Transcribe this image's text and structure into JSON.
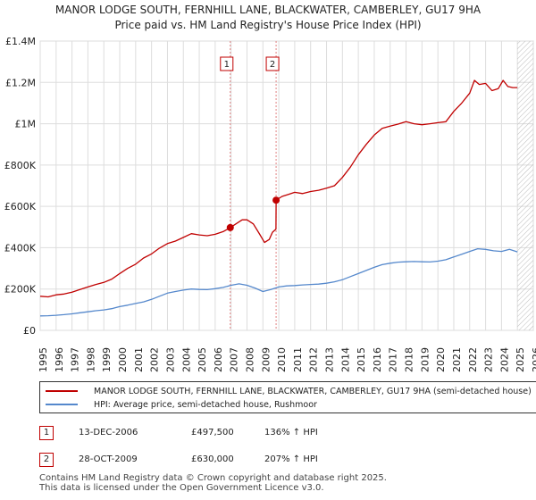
{
  "title_line1": "MANOR LODGE SOUTH, FERNHILL LANE, BLACKWATER, CAMBERLEY, GU17 9HA",
  "title_line2": "Price paid vs. HM Land Registry's House Price Index (HPI)",
  "chart_data": {
    "type": "line",
    "title": "MANOR LODGE SOUTH, FERNHILL LANE, BLACKWATER, CAMBERLEY, GU17 9HA",
    "subtitle": "Price paid vs. HM Land Registry's House Price Index (HPI)",
    "xlabel": "",
    "ylabel": "",
    "xlim": [
      1995,
      2026
    ],
    "ylim": [
      0,
      1400000
    ],
    "grid": true,
    "y_ticks": [
      {
        "value": 0,
        "label": "£0"
      },
      {
        "value": 200000,
        "label": "£200K"
      },
      {
        "value": 400000,
        "label": "£400K"
      },
      {
        "value": 600000,
        "label": "£600K"
      },
      {
        "value": 800000,
        "label": "£800K"
      },
      {
        "value": 1000000,
        "label": "£1M"
      },
      {
        "value": 1200000,
        "label": "£1.2M"
      },
      {
        "value": 1400000,
        "label": "£1.4M"
      }
    ],
    "x_ticks": [
      "1995",
      "1996",
      "1997",
      "1998",
      "1999",
      "2000",
      "2001",
      "2002",
      "2003",
      "2004",
      "2005",
      "2006",
      "2007",
      "2008",
      "2009",
      "2010",
      "2011",
      "2012",
      "2013",
      "2014",
      "2015",
      "2016",
      "2017",
      "2018",
      "2019",
      "2020",
      "2021",
      "2022",
      "2023",
      "2024",
      "2025",
      "2026"
    ],
    "series": [
      {
        "name": "MANOR LODGE SOUTH, FERNHILL LANE, BLACKWATER, CAMBERLEY, GU17 9HA (semi-detached house)",
        "color": "#c00000",
        "x": [
          1995.0,
          1995.5,
          1996.0,
          1996.5,
          1997.0,
          1997.5,
          1998.0,
          1998.5,
          1999.0,
          1999.5,
          2000.0,
          2000.5,
          2001.0,
          2001.5,
          2002.0,
          2002.5,
          2003.0,
          2003.5,
          2004.0,
          2004.5,
          2005.0,
          2005.5,
          2006.0,
          2006.5,
          2006.95,
          2007.3,
          2007.7,
          2008.0,
          2008.4,
          2008.8,
          2009.1,
          2009.4,
          2009.6,
          2009.82,
          2009.83,
          2010.2,
          2010.6,
          2011.0,
          2011.5,
          2012.0,
          2012.5,
          2013.0,
          2013.5,
          2014.0,
          2014.5,
          2015.0,
          2015.5,
          2016.0,
          2016.5,
          2017.0,
          2017.5,
          2018.0,
          2018.5,
          2019.0,
          2019.5,
          2020.0,
          2020.5,
          2021.0,
          2021.5,
          2022.0,
          2022.3,
          2022.6,
          2023.0,
          2023.4,
          2023.8,
          2024.1,
          2024.4,
          2024.7,
          2025.0
        ],
        "values": [
          165000,
          162000,
          172000,
          176000,
          185000,
          198000,
          210000,
          222000,
          232000,
          248000,
          275000,
          300000,
          320000,
          350000,
          370000,
          398000,
          420000,
          432000,
          450000,
          468000,
          462000,
          458000,
          465000,
          478000,
          497500,
          515000,
          535000,
          535000,
          515000,
          465000,
          425000,
          440000,
          475000,
          490000,
          630000,
          648000,
          658000,
          668000,
          662000,
          672000,
          678000,
          688000,
          700000,
          740000,
          790000,
          850000,
          900000,
          945000,
          978000,
          988000,
          998000,
          1010000,
          1000000,
          995000,
          1000000,
          1005000,
          1010000,
          1060000,
          1100000,
          1148000,
          1210000,
          1190000,
          1195000,
          1160000,
          1170000,
          1210000,
          1180000,
          1175000,
          1175000
        ]
      },
      {
        "name": "HPI: Average price, semi-detached house, Rushmoor",
        "color": "#5588cc",
        "x": [
          1995.0,
          1995.5,
          1996.0,
          1996.5,
          1997.0,
          1997.5,
          1998.0,
          1998.5,
          1999.0,
          1999.5,
          2000.0,
          2000.5,
          2001.0,
          2001.5,
          2002.0,
          2002.5,
          2003.0,
          2003.5,
          2004.0,
          2004.5,
          2005.0,
          2005.5,
          2006.0,
          2006.5,
          2007.0,
          2007.5,
          2008.0,
          2008.5,
          2009.0,
          2009.5,
          2010.0,
          2010.5,
          2011.0,
          2011.5,
          2012.0,
          2012.5,
          2013.0,
          2013.5,
          2014.0,
          2014.5,
          2015.0,
          2015.5,
          2016.0,
          2016.5,
          2017.0,
          2017.5,
          2018.0,
          2018.5,
          2019.0,
          2019.5,
          2020.0,
          2020.5,
          2021.0,
          2021.5,
          2022.0,
          2022.5,
          2023.0,
          2023.5,
          2024.0,
          2024.5,
          2025.0
        ],
        "values": [
          70000,
          71000,
          73000,
          76000,
          80000,
          85000,
          90000,
          95000,
          99000,
          105000,
          115000,
          122000,
          130000,
          138000,
          150000,
          165000,
          180000,
          188000,
          195000,
          200000,
          198000,
          197000,
          202000,
          208000,
          218000,
          225000,
          218000,
          205000,
          188000,
          198000,
          210000,
          215000,
          217000,
          220000,
          222000,
          224000,
          228000,
          235000,
          245000,
          260000,
          275000,
          290000,
          305000,
          318000,
          325000,
          330000,
          332000,
          333000,
          332000,
          331000,
          335000,
          342000,
          355000,
          368000,
          382000,
          395000,
          392000,
          385000,
          382000,
          392000,
          380000
        ]
      }
    ],
    "sales": [
      {
        "id": "1",
        "x": 2006.95,
        "value": 497500
      },
      {
        "id": "2",
        "x": 2009.83,
        "value": 630000
      }
    ],
    "forecast_start": 2025.0
  },
  "legend": {
    "property_label": "MANOR LODGE SOUTH, FERNHILL LANE, BLACKWATER, CAMBERLEY, GU17 9HA (semi-detached house)",
    "hpi_label": "HPI: Average price, semi-detached house, Rushmoor",
    "property_color": "#c00000",
    "hpi_color": "#5588cc"
  },
  "transactions": [
    {
      "id": "1",
      "date": "13-DEC-2006",
      "price": "£497,500",
      "hpi": "136% ↑ HPI"
    },
    {
      "id": "2",
      "date": "28-OCT-2009",
      "price": "£630,000",
      "hpi": "207% ↑ HPI"
    }
  ],
  "footer": {
    "line1": "Contains HM Land Registry data © Crown copyright and database right 2025.",
    "line2": "This data is licensed under the Open Government Licence v3.0."
  }
}
